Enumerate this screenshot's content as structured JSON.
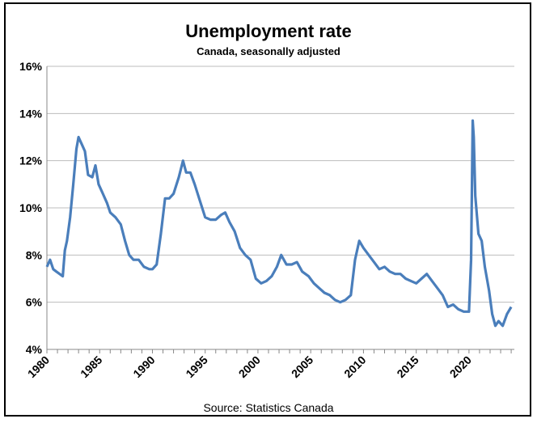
{
  "chart_data": {
    "type": "line",
    "title": "Unemployment rate",
    "subtitle": "Canada, seasonally adjusted",
    "source": "Source: Statistics Canada",
    "xlabel": "",
    "ylabel": "",
    "xlim": [
      1980,
      2024.3
    ],
    "ylim": [
      4,
      16
    ],
    "x_ticks": [
      "1980",
      "1985",
      "1990",
      "1995",
      "2000",
      "2005",
      "2010",
      "2015",
      "2020"
    ],
    "y_ticks": [
      "4%",
      "6%",
      "8%",
      "10%",
      "12%",
      "14%",
      "16%"
    ],
    "grid": true,
    "line_color": "#4a7ebb",
    "series": [
      {
        "name": "Unemployment rate",
        "points": [
          [
            1980,
            7.5
          ],
          [
            1980.3,
            7.8
          ],
          [
            1980.6,
            7.4
          ],
          [
            1980.9,
            7.3
          ],
          [
            1981.2,
            7.2
          ],
          [
            1981.5,
            7.1
          ],
          [
            1981.7,
            8.2
          ],
          [
            1981.9,
            8.6
          ],
          [
            1982.2,
            9.6
          ],
          [
            1982.5,
            11.0
          ],
          [
            1982.8,
            12.5
          ],
          [
            1983.0,
            13.0
          ],
          [
            1983.3,
            12.7
          ],
          [
            1983.6,
            12.4
          ],
          [
            1983.9,
            11.4
          ],
          [
            1984.3,
            11.3
          ],
          [
            1984.6,
            11.8
          ],
          [
            1984.9,
            11.0
          ],
          [
            1985.3,
            10.6
          ],
          [
            1985.7,
            10.2
          ],
          [
            1986.0,
            9.8
          ],
          [
            1986.5,
            9.6
          ],
          [
            1987.0,
            9.3
          ],
          [
            1987.4,
            8.6
          ],
          [
            1987.8,
            8.0
          ],
          [
            1988.2,
            7.8
          ],
          [
            1988.7,
            7.8
          ],
          [
            1989.2,
            7.5
          ],
          [
            1989.7,
            7.4
          ],
          [
            1990.0,
            7.4
          ],
          [
            1990.4,
            7.6
          ],
          [
            1990.8,
            8.9
          ],
          [
            1991.2,
            10.4
          ],
          [
            1991.6,
            10.4
          ],
          [
            1992.0,
            10.6
          ],
          [
            1992.5,
            11.3
          ],
          [
            1992.9,
            12.0
          ],
          [
            1993.2,
            11.5
          ],
          [
            1993.6,
            11.5
          ],
          [
            1994.0,
            11.0
          ],
          [
            1994.5,
            10.3
          ],
          [
            1995.0,
            9.6
          ],
          [
            1995.5,
            9.5
          ],
          [
            1996.0,
            9.5
          ],
          [
            1996.5,
            9.7
          ],
          [
            1996.9,
            9.8
          ],
          [
            1997.3,
            9.4
          ],
          [
            1997.8,
            9.0
          ],
          [
            1998.3,
            8.3
          ],
          [
            1998.8,
            8.0
          ],
          [
            1999.3,
            7.8
          ],
          [
            1999.8,
            7.0
          ],
          [
            2000.3,
            6.8
          ],
          [
            2000.8,
            6.9
          ],
          [
            2001.3,
            7.1
          ],
          [
            2001.8,
            7.5
          ],
          [
            2002.2,
            8.0
          ],
          [
            2002.7,
            7.6
          ],
          [
            2003.2,
            7.6
          ],
          [
            2003.7,
            7.7
          ],
          [
            2004.2,
            7.3
          ],
          [
            2004.8,
            7.1
          ],
          [
            2005.3,
            6.8
          ],
          [
            2005.8,
            6.6
          ],
          [
            2006.3,
            6.4
          ],
          [
            2006.8,
            6.3
          ],
          [
            2007.3,
            6.1
          ],
          [
            2007.8,
            6.0
          ],
          [
            2008.3,
            6.1
          ],
          [
            2008.8,
            6.3
          ],
          [
            2009.2,
            7.8
          ],
          [
            2009.6,
            8.6
          ],
          [
            2010.0,
            8.3
          ],
          [
            2010.5,
            8.0
          ],
          [
            2011.0,
            7.7
          ],
          [
            2011.5,
            7.4
          ],
          [
            2012.0,
            7.5
          ],
          [
            2012.5,
            7.3
          ],
          [
            2013.0,
            7.2
          ],
          [
            2013.5,
            7.2
          ],
          [
            2014.0,
            7.0
          ],
          [
            2014.5,
            6.9
          ],
          [
            2015.0,
            6.8
          ],
          [
            2015.5,
            7.0
          ],
          [
            2016.0,
            7.2
          ],
          [
            2016.5,
            6.9
          ],
          [
            2017.0,
            6.6
          ],
          [
            2017.5,
            6.3
          ],
          [
            2018.0,
            5.8
          ],
          [
            2018.5,
            5.9
          ],
          [
            2019.0,
            5.7
          ],
          [
            2019.5,
            5.6
          ],
          [
            2020.0,
            5.6
          ],
          [
            2020.2,
            7.8
          ],
          [
            2020.35,
            13.7
          ],
          [
            2020.45,
            13.0
          ],
          [
            2020.6,
            10.5
          ],
          [
            2020.9,
            8.9
          ],
          [
            2021.2,
            8.6
          ],
          [
            2021.5,
            7.5
          ],
          [
            2021.9,
            6.5
          ],
          [
            2022.2,
            5.5
          ],
          [
            2022.5,
            5.0
          ],
          [
            2022.8,
            5.2
          ],
          [
            2023.2,
            5.0
          ],
          [
            2023.6,
            5.5
          ],
          [
            2024.0,
            5.8
          ]
        ]
      }
    ]
  }
}
